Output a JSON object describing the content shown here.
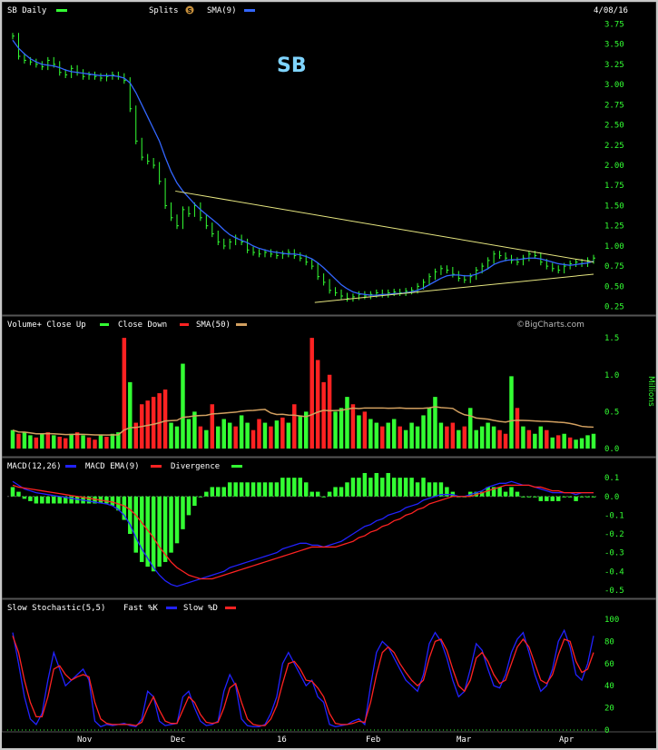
{
  "header": {
    "symbol_label": "SB Daily",
    "splits_label": "Splits",
    "splits_badge": "S",
    "sma_label": "SMA(9)",
    "date": "4/08/16",
    "ticker_title": "SB"
  },
  "colors": {
    "up": "#33ff33",
    "down": "#ff2222",
    "sma": "#3366ff",
    "trend": "#e6e680",
    "vol_sma": "#d2a060",
    "macd": "#2222ff",
    "signal": "#ff2222",
    "axis_text": "#33ff33"
  },
  "volume_panel": {
    "legend": "Volume+  Close Up",
    "close_down": "Close Down",
    "sma": "SMA(50)",
    "watermark": "©BigCharts.com",
    "unit": "Millions"
  },
  "macd_panel": {
    "legend": "MACD(12,26)",
    "ema": "MACD EMA(9)",
    "divergence": "Divergence"
  },
  "stoch_panel": {
    "legend": "Slow Stochastic(5,5)",
    "fast": "Fast %K",
    "slow": "Slow %D"
  },
  "chart_data": [
    {
      "type": "line",
      "name": "price",
      "y_ticks": [
        "3.75",
        "3.50",
        "3.25",
        "3.00",
        "2.75",
        "2.50",
        "2.25",
        "2.00",
        "1.75",
        "1.50",
        "1.25",
        "1.00",
        "0.75",
        "0.50",
        "0.25"
      ],
      "ylim": [
        0.2,
        3.8
      ],
      "x_labels": [
        "Nov",
        "Dec",
        "16",
        "Feb",
        "Mar",
        "Apr"
      ],
      "close": [
        3.6,
        3.35,
        3.3,
        3.28,
        3.25,
        3.22,
        3.3,
        3.25,
        3.15,
        3.12,
        3.2,
        3.15,
        3.1,
        3.12,
        3.1,
        3.08,
        3.1,
        3.12,
        3.1,
        3.05,
        2.7,
        2.3,
        2.1,
        2.05,
        2.0,
        1.8,
        1.5,
        1.35,
        1.25,
        1.45,
        1.4,
        1.5,
        1.35,
        1.25,
        1.15,
        1.05,
        1.0,
        1.05,
        1.1,
        1.05,
        0.95,
        0.92,
        0.9,
        0.92,
        0.9,
        0.88,
        0.9,
        0.92,
        0.88,
        0.85,
        0.8,
        0.75,
        0.62,
        0.55,
        0.45,
        0.42,
        0.38,
        0.35,
        0.37,
        0.4,
        0.38,
        0.4,
        0.42,
        0.4,
        0.42,
        0.43,
        0.42,
        0.44,
        0.45,
        0.5,
        0.55,
        0.62,
        0.68,
        0.72,
        0.7,
        0.65,
        0.6,
        0.58,
        0.62,
        0.7,
        0.75,
        0.82,
        0.9,
        0.88,
        0.85,
        0.82,
        0.8,
        0.85,
        0.9,
        0.88,
        0.8,
        0.75,
        0.72,
        0.7,
        0.75,
        0.78,
        0.8,
        0.78,
        0.82,
        0.85
      ],
      "sma9": [
        3.55,
        3.45,
        3.38,
        3.32,
        3.28,
        3.25,
        3.24,
        3.23,
        3.21,
        3.18,
        3.16,
        3.15,
        3.14,
        3.13,
        3.12,
        3.11,
        3.11,
        3.11,
        3.1,
        3.08,
        3.02,
        2.9,
        2.75,
        2.6,
        2.45,
        2.3,
        2.1,
        1.92,
        1.78,
        1.68,
        1.6,
        1.52,
        1.45,
        1.39,
        1.33,
        1.27,
        1.2,
        1.14,
        1.1,
        1.07,
        1.04,
        1.0,
        0.97,
        0.95,
        0.93,
        0.92,
        0.91,
        0.9,
        0.9,
        0.89,
        0.87,
        0.84,
        0.79,
        0.73,
        0.66,
        0.59,
        0.52,
        0.47,
        0.43,
        0.41,
        0.4,
        0.39,
        0.39,
        0.4,
        0.4,
        0.41,
        0.41,
        0.42,
        0.43,
        0.45,
        0.48,
        0.52,
        0.56,
        0.6,
        0.63,
        0.64,
        0.64,
        0.63,
        0.63,
        0.65,
        0.68,
        0.72,
        0.77,
        0.8,
        0.82,
        0.83,
        0.83,
        0.84,
        0.85,
        0.85,
        0.84,
        0.82,
        0.8,
        0.78,
        0.77,
        0.76,
        0.77,
        0.78,
        0.79,
        0.81
      ],
      "trendlines": [
        {
          "from": [
            28,
            1.68
          ],
          "to": [
            100,
            0.8
          ]
        },
        {
          "from": [
            52,
            0.3
          ],
          "to": [
            100,
            0.65
          ]
        }
      ]
    },
    {
      "type": "bar",
      "name": "volume",
      "y_ticks": [
        "1.5",
        "1.0",
        "0.5",
        "0.0"
      ],
      "ylim": [
        0,
        1.6
      ],
      "values": [
        0.25,
        0.2,
        0.22,
        0.18,
        0.15,
        0.2,
        0.22,
        0.18,
        0.16,
        0.14,
        0.2,
        0.22,
        0.18,
        0.15,
        0.12,
        0.18,
        0.16,
        0.2,
        0.22,
        1.5,
        0.9,
        0.35,
        0.6,
        0.65,
        0.7,
        0.75,
        0.8,
        0.35,
        0.3,
        1.15,
        0.4,
        0.5,
        0.3,
        0.25,
        0.6,
        0.3,
        0.4,
        0.35,
        0.3,
        0.45,
        0.35,
        0.25,
        0.4,
        0.35,
        0.3,
        0.38,
        0.42,
        0.35,
        0.6,
        0.45,
        0.5,
        1.5,
        1.2,
        0.9,
        1.0,
        0.5,
        0.55,
        0.7,
        0.6,
        0.45,
        0.5,
        0.4,
        0.35,
        0.3,
        0.35,
        0.4,
        0.3,
        0.25,
        0.35,
        0.3,
        0.45,
        0.55,
        0.7,
        0.35,
        0.3,
        0.35,
        0.25,
        0.3,
        0.55,
        0.25,
        0.3,
        0.35,
        0.3,
        0.25,
        0.2,
        0.98,
        0.55,
        0.3,
        0.25,
        0.2,
        0.3,
        0.25,
        0.15,
        0.18,
        0.2,
        0.15,
        0.12,
        0.14,
        0.18,
        0.2
      ],
      "up": [
        1,
        0,
        1,
        1,
        0,
        1,
        0,
        1,
        0,
        0,
        1,
        0,
        1,
        0,
        0,
        1,
        0,
        1,
        1,
        0,
        1,
        0,
        0,
        0,
        0,
        0,
        0,
        1,
        1,
        1,
        1,
        1,
        0,
        1,
        0,
        1,
        1,
        1,
        0,
        1,
        1,
        0,
        0,
        1,
        0,
        1,
        0,
        1,
        0,
        1,
        1,
        0,
        0,
        0,
        0,
        1,
        1,
        1,
        0,
        1,
        0,
        1,
        1,
        0,
        1,
        1,
        0,
        1,
        1,
        1,
        1,
        1,
        1,
        1,
        0,
        0,
        1,
        0,
        1,
        1,
        1,
        1,
        1,
        0,
        0,
        1,
        0,
        1,
        0,
        1,
        1,
        0,
        1,
        0,
        1,
        0,
        1,
        1,
        1,
        1
      ]
    },
    {
      "type": "line",
      "name": "macd",
      "y_ticks": [
        "0.1",
        "0.0",
        "-0.1",
        "-0.2",
        "-0.3",
        "-0.4",
        "-0.5"
      ],
      "ylim": [
        -0.52,
        0.12
      ],
      "macd": [
        0.08,
        0.06,
        0.04,
        0.03,
        0.02,
        0.015,
        0.01,
        0.005,
        0.0,
        -0.005,
        -0.01,
        -0.015,
        -0.02,
        -0.025,
        -0.03,
        -0.035,
        -0.04,
        -0.05,
        -0.07,
        -0.1,
        -0.15,
        -0.22,
        -0.28,
        -0.33,
        -0.38,
        -0.42,
        -0.45,
        -0.47,
        -0.48,
        -0.47,
        -0.46,
        -0.45,
        -0.44,
        -0.43,
        -0.42,
        -0.41,
        -0.4,
        -0.38,
        -0.37,
        -0.36,
        -0.35,
        -0.34,
        -0.33,
        -0.32,
        -0.31,
        -0.3,
        -0.28,
        -0.27,
        -0.26,
        -0.25,
        -0.25,
        -0.26,
        -0.26,
        -0.27,
        -0.26,
        -0.25,
        -0.24,
        -0.22,
        -0.2,
        -0.18,
        -0.16,
        -0.15,
        -0.13,
        -0.12,
        -0.1,
        -0.09,
        -0.08,
        -0.06,
        -0.05,
        -0.04,
        -0.02,
        -0.01,
        0.0,
        0.01,
        0.01,
        0.01,
        0.0,
        0.0,
        0.01,
        0.02,
        0.03,
        0.05,
        0.06,
        0.07,
        0.07,
        0.08,
        0.07,
        0.06,
        0.06,
        0.05,
        0.04,
        0.03,
        0.02,
        0.02,
        0.02,
        0.02,
        0.01,
        0.02,
        0.02,
        0.02
      ],
      "signal": [
        0.06,
        0.05,
        0.045,
        0.04,
        0.035,
        0.03,
        0.025,
        0.02,
        0.015,
        0.01,
        0.005,
        0.0,
        -0.005,
        -0.01,
        -0.015,
        -0.02,
        -0.025,
        -0.03,
        -0.04,
        -0.05,
        -0.07,
        -0.1,
        -0.14,
        -0.18,
        -0.22,
        -0.27,
        -0.31,
        -0.35,
        -0.38,
        -0.4,
        -0.42,
        -0.43,
        -0.44,
        -0.44,
        -0.44,
        -0.43,
        -0.42,
        -0.41,
        -0.4,
        -0.39,
        -0.38,
        -0.37,
        -0.36,
        -0.35,
        -0.34,
        -0.33,
        -0.32,
        -0.31,
        -0.3,
        -0.29,
        -0.28,
        -0.27,
        -0.27,
        -0.27,
        -0.27,
        -0.27,
        -0.26,
        -0.25,
        -0.24,
        -0.22,
        -0.21,
        -0.19,
        -0.18,
        -0.16,
        -0.15,
        -0.13,
        -0.12,
        -0.1,
        -0.09,
        -0.07,
        -0.06,
        -0.04,
        -0.03,
        -0.02,
        -0.01,
        0.0,
        0.0,
        0.0,
        0.0,
        0.01,
        0.02,
        0.03,
        0.04,
        0.05,
        0.06,
        0.06,
        0.06,
        0.06,
        0.06,
        0.05,
        0.05,
        0.04,
        0.03,
        0.03,
        0.02,
        0.02,
        0.02,
        0.02,
        0.02,
        0.02
      ]
    },
    {
      "type": "line",
      "name": "stochastic",
      "y_ticks": [
        "100",
        "80",
        "60",
        "40",
        "20",
        "0"
      ],
      "ylim": [
        0,
        100
      ],
      "fast_k": [
        88,
        60,
        30,
        10,
        5,
        15,
        45,
        70,
        55,
        40,
        45,
        50,
        55,
        45,
        8,
        3,
        5,
        4,
        5,
        6,
        4,
        3,
        10,
        35,
        30,
        8,
        4,
        5,
        6,
        30,
        35,
        20,
        8,
        4,
        5,
        8,
        35,
        50,
        40,
        10,
        4,
        3,
        3,
        5,
        15,
        30,
        60,
        70,
        60,
        50,
        40,
        45,
        30,
        25,
        5,
        3,
        4,
        5,
        8,
        10,
        5,
        40,
        70,
        80,
        75,
        65,
        55,
        45,
        40,
        35,
        50,
        78,
        88,
        80,
        65,
        45,
        30,
        35,
        55,
        78,
        72,
        55,
        40,
        38,
        50,
        70,
        82,
        88,
        70,
        50,
        35,
        40,
        55,
        80,
        90,
        75,
        50,
        45,
        60,
        85
      ],
      "slow_d": [
        85,
        70,
        45,
        25,
        12,
        12,
        30,
        55,
        58,
        50,
        45,
        48,
        50,
        48,
        25,
        10,
        6,
        5,
        5,
        5,
        5,
        4,
        7,
        20,
        30,
        18,
        8,
        6,
        6,
        18,
        30,
        25,
        14,
        7,
        6,
        7,
        20,
        38,
        42,
        25,
        10,
        5,
        4,
        4,
        10,
        22,
        42,
        60,
        62,
        55,
        45,
        44,
        38,
        30,
        15,
        6,
        5,
        5,
        6,
        8,
        7,
        25,
        50,
        70,
        75,
        70,
        60,
        52,
        45,
        40,
        45,
        65,
        80,
        82,
        72,
        55,
        40,
        35,
        45,
        65,
        70,
        62,
        50,
        42,
        45,
        60,
        75,
        82,
        75,
        60,
        45,
        42,
        50,
        68,
        82,
        80,
        62,
        52,
        55,
        70
      ]
    }
  ]
}
